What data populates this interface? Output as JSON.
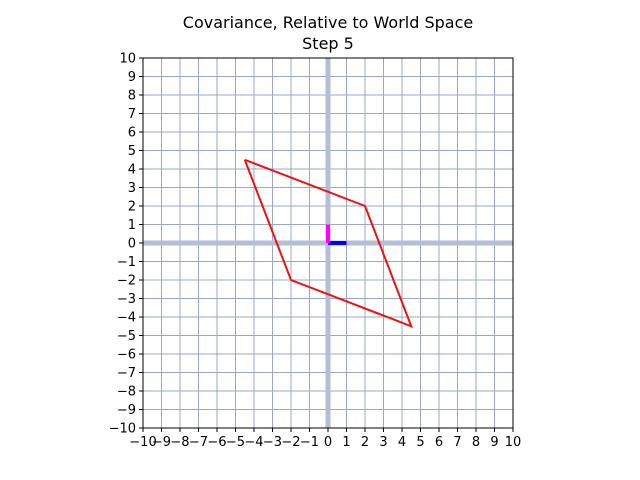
{
  "chart_data": {
    "type": "line",
    "title": "Covariance, Relative to World Space",
    "subtitle": "Step 5",
    "xlim": [
      -10,
      10
    ],
    "ylim": [
      -10,
      10
    ],
    "xticks": [
      -10,
      -9,
      -8,
      -7,
      -6,
      -5,
      -4,
      -3,
      -2,
      -1,
      0,
      1,
      2,
      3,
      4,
      5,
      6,
      7,
      8,
      9,
      10
    ],
    "yticks": [
      -10,
      -9,
      -8,
      -7,
      -6,
      -5,
      -4,
      -3,
      -2,
      -1,
      0,
      1,
      2,
      3,
      4,
      5,
      6,
      7,
      8,
      9,
      10
    ],
    "grid": true,
    "colors": {
      "grid": "#9aa7c8",
      "axes_highlight": "#b4bed8",
      "shape": "#ee1111",
      "basis_x": "#0000ff",
      "basis_y": "#ff00ff"
    },
    "series": [
      {
        "values_xy": [
          [
            -4.5,
            4.5
          ],
          [
            2,
            2
          ],
          [
            4.5,
            -4.5
          ],
          [
            -2,
            -2
          ],
          [
            -4.5,
            4.5
          ]
        ]
      },
      {
        "values_xy": [
          [
            0,
            0
          ],
          [
            1,
            0
          ]
        ]
      },
      {
        "values_xy": [
          [
            0,
            0
          ],
          [
            0,
            1
          ]
        ]
      }
    ]
  }
}
